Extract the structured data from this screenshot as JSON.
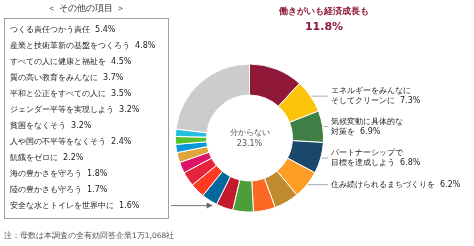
{
  "chart_data": {
    "type": "doughnut",
    "title": "働きがいも経済成長も",
    "subtitle": "11.8%",
    "categories": [
      "働きがいも経済成長も",
      "エネルギーをみんなに\nそしてクリーンに  7.3%",
      "気候変動に具体的な\n対策を  6.9%",
      "パートナーシップで\n目標を達成しよう  6.8%",
      "住み続けられるまちづくりを  6.2%",
      "つくる責任つかう責任  5.4%",
      "産業と技術革新の基盤をつくろう  4.8%",
      "すべての人に健康と福祉を  4.5%",
      "質の高い教育をみんなに  3.7%",
      "平和と公正をすべての人に  3.5%",
      "ジェンダー平等を実現しよう  3.2%",
      "貧困をなくそう  3.2%",
      "人や国の不平等をなくそう  2.4%",
      "飢餓をゼロに  2.2%",
      "海の豊かさを守ろう  1.8%",
      "陸の豊かさも守ろう  1.7%",
      "安全な水とトイレを世界中に  1.6%",
      "分からない"
    ],
    "values": [
      11.8,
      7.3,
      6.9,
      6.8,
      6.2,
      5.4,
      4.8,
      4.5,
      3.7,
      3.5,
      3.2,
      3.2,
      2.4,
      2.2,
      1.8,
      1.7,
      1.6,
      23.1
    ],
    "value_labels": [
      null,
      "エネルギーをみんなに\nそしてクリーンに  7.3%",
      "気候変動に具体的な\n対策を  6.9%",
      "パートナーシップで\n目標を達成しよう  6.8%",
      "住み続けられるまちづくりを  6.2%",
      null,
      null,
      null,
      null,
      null,
      null,
      null,
      null,
      null,
      null,
      null,
      null,
      "分からない\n23.1%"
    ],
    "colors": [
      "#8F1838",
      "#FCC30B",
      "#3F7E44",
      "#19486A",
      "#FD9D24",
      "#BF8B2E",
      "#FD6925",
      "#4C9F38",
      "#C5192D",
      "#00689D",
      "#FF3A21",
      "#E5243B",
      "#DD1367",
      "#DDA63A",
      "#0A97D9",
      "#56C02B",
      "#26BDE2",
      "#CCCCCC"
    ],
    "box_title": "＜ その他の項目 ＞",
    "box_items": [
      "つくる責任つかう責任  5.4%",
      "産業と技術革新の基盤をつくろう  4.8%",
      "すべての人に健康と福祉を  4.5%",
      "質の高い教育をみんなに  3.7%",
      "平和と公正をすべての人に  3.5%",
      "ジェンダー平等を実現しよう  3.2%",
      "貧困をなくそう  3.2%",
      "人や国の不平等をなくそう  2.4%",
      "飢餓をゼロに  2.2%",
      "海の豊かさを守ろう  1.8%",
      "陸の豊かさも守ろう  1.7%",
      "安全な水とトイレを世界中に  1.6%"
    ],
    "footnote": "注：母数は本調査の全有効回答企業1万1,068社"
  }
}
